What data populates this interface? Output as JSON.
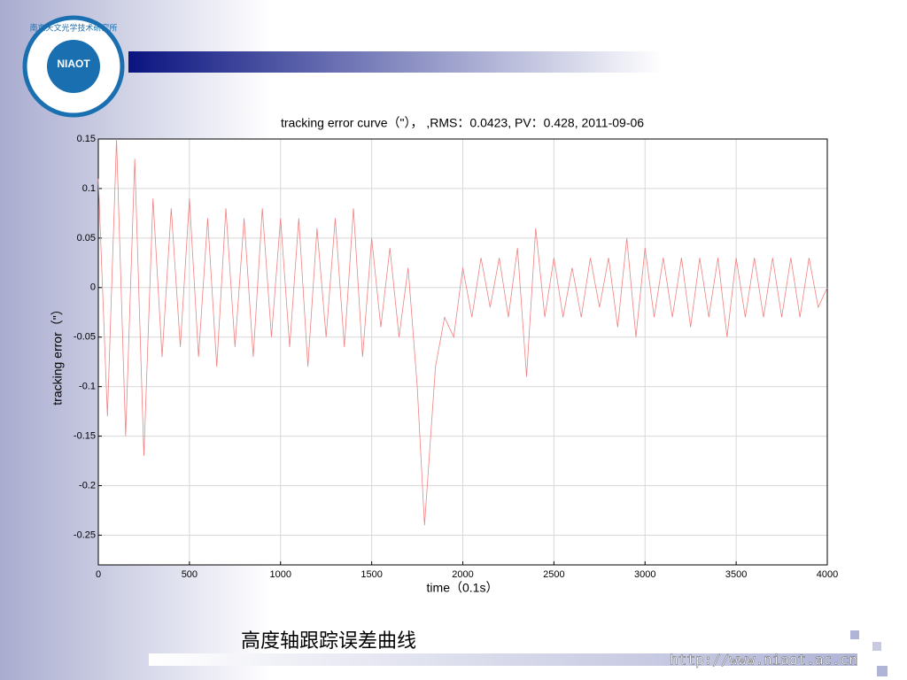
{
  "chart_data": {
    "type": "line",
    "title": "tracking error curve（\"）， ,RMS：0.0423,  PV：0.428, 2011-09-06",
    "x_label": "time（0.1s）",
    "y_label": "tracking error（\"）",
    "x": [
      0,
      50,
      100,
      150,
      200,
      250,
      300,
      350,
      400,
      450,
      500,
      550,
      600,
      650,
      700,
      750,
      800,
      850,
      900,
      950,
      1000,
      1050,
      1100,
      1150,
      1200,
      1250,
      1300,
      1350,
      1400,
      1450,
      1500,
      1550,
      1600,
      1650,
      1700,
      1750,
      1790,
      1850,
      1900,
      1950,
      2000,
      2050,
      2100,
      2150,
      2200,
      2250,
      2300,
      2350,
      2400,
      2450,
      2500,
      2550,
      2600,
      2650,
      2700,
      2750,
      2800,
      2850,
      2900,
      2950,
      3000,
      3050,
      3100,
      3150,
      3200,
      3250,
      3300,
      3350,
      3400,
      3450,
      3500,
      3550,
      3600,
      3650,
      3700,
      3750,
      3800,
      3850,
      3900,
      3950,
      4000
    ],
    "values": [
      0.11,
      -0.13,
      0.15,
      -0.15,
      0.13,
      -0.17,
      0.09,
      -0.07,
      0.08,
      -0.06,
      0.09,
      -0.07,
      0.07,
      -0.08,
      0.08,
      -0.06,
      0.07,
      -0.07,
      0.08,
      -0.05,
      0.07,
      -0.06,
      0.07,
      -0.08,
      0.06,
      -0.05,
      0.07,
      -0.06,
      0.08,
      -0.07,
      0.05,
      -0.04,
      0.04,
      -0.05,
      0.02,
      -0.1,
      -0.24,
      -0.08,
      -0.03,
      -0.05,
      0.02,
      -0.03,
      0.03,
      -0.02,
      0.03,
      -0.03,
      0.04,
      -0.09,
      0.06,
      -0.03,
      0.03,
      -0.03,
      0.02,
      -0.03,
      0.03,
      -0.02,
      0.03,
      -0.04,
      0.05,
      -0.05,
      0.04,
      -0.03,
      0.03,
      -0.03,
      0.03,
      -0.04,
      0.03,
      -0.03,
      0.03,
      -0.05,
      0.03,
      -0.03,
      0.03,
      -0.03,
      0.03,
      -0.03,
      0.03,
      -0.03,
      0.03,
      -0.02,
      0.0
    ],
    "color": "#f08080",
    "xlim": [
      0,
      4000
    ],
    "xticks": [
      0,
      500,
      1000,
      1500,
      2000,
      2500,
      3000,
      3500,
      4000
    ],
    "ylim": [
      -0.28,
      0.15
    ],
    "yticks": [
      -0.25,
      -0.2,
      -0.15,
      -0.1,
      -0.05,
      0,
      0.05,
      0.1,
      0.15
    ],
    "grid": true
  },
  "slide": {
    "caption": "高度轴跟踪误差曲线",
    "url": "http://www.niaot.ac.cn"
  },
  "logo": {
    "name": "南京天文光学技术研究所",
    "abbr": "NIAOT"
  }
}
